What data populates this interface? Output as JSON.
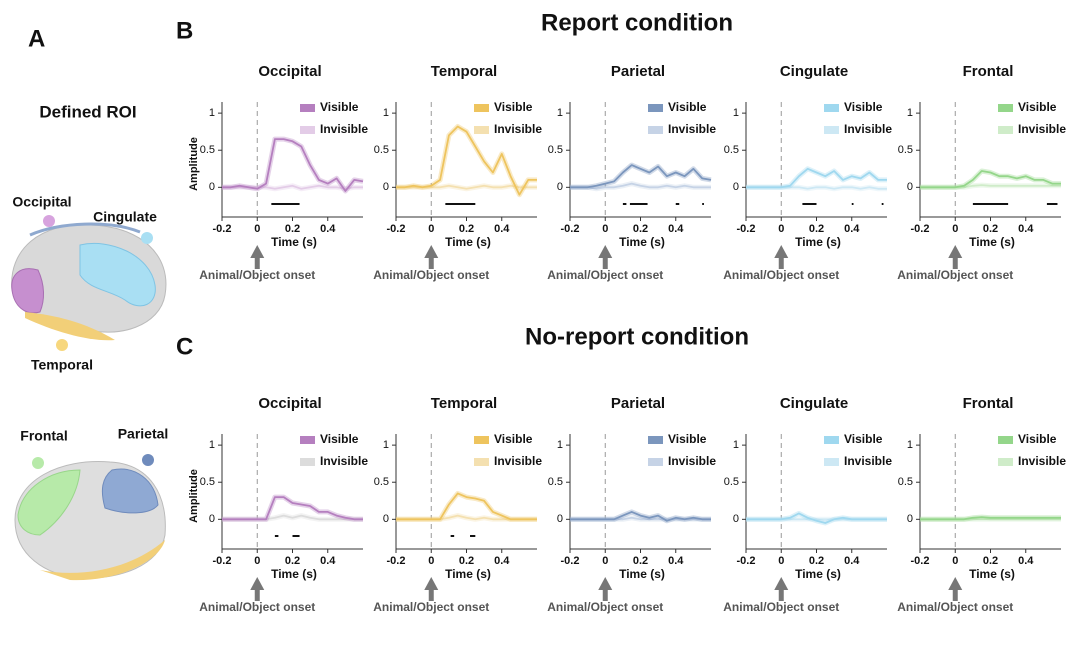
{
  "figure": {
    "panel_labels": [
      "A",
      "B",
      "C"
    ],
    "row_titles": [
      "Report condition",
      "No-report condition"
    ],
    "roi_title": "Defined ROI",
    "roi_labels": [
      "Occipital",
      "Cingulate",
      "Temporal",
      "Frontal",
      "Parietal"
    ]
  },
  "chart_data": [
    {
      "type": "line",
      "title": "Occipital",
      "xlabel": "Time (s)",
      "ylabel": "Amplitude",
      "annotation": "Animal/Object onset",
      "x": [
        -0.2,
        -0.15,
        -0.1,
        -0.05,
        0,
        0.05,
        0.1,
        0.15,
        0.2,
        0.25,
        0.3,
        0.35,
        0.4,
        0.45,
        0.5,
        0.55,
        0.6
      ],
      "series": [
        {
          "name": "Visible",
          "color": "#b57fbf",
          "values": [
            0,
            0,
            0.02,
            0,
            -0.02,
            0.05,
            0.65,
            0.65,
            0.62,
            0.55,
            0.3,
            0.1,
            0.05,
            0.12,
            -0.05,
            0.1,
            0.08
          ]
        },
        {
          "name": "Invisible",
          "color": "#e3cce7",
          "values": [
            0,
            0,
            0,
            0,
            0,
            0,
            -0.02,
            0,
            0.02,
            -0.02,
            0,
            0.02,
            0,
            0,
            -0.02,
            0,
            0
          ]
        }
      ],
      "sig_bars": [
        [
          0.08,
          0.24
        ]
      ],
      "xlim": [
        -0.2,
        0.6
      ],
      "ylim": [
        -0.4,
        1.15
      ],
      "xticks": [
        -0.2,
        0,
        0.2,
        0.4
      ],
      "yticks": [
        0,
        0.5,
        1
      ]
    },
    {
      "type": "line",
      "title": "Temporal",
      "xlabel": "Time (s)",
      "annotation": "Animal/Object onset",
      "x": [
        -0.2,
        -0.15,
        -0.1,
        -0.05,
        0,
        0.05,
        0.1,
        0.15,
        0.2,
        0.25,
        0.3,
        0.35,
        0.4,
        0.45,
        0.5,
        0.55,
        0.6
      ],
      "series": [
        {
          "name": "Visible",
          "color": "#eec45e",
          "values": [
            0,
            0,
            0.02,
            0,
            0.02,
            0.1,
            0.7,
            0.82,
            0.75,
            0.55,
            0.35,
            0.2,
            0.45,
            0.15,
            -0.1,
            0.1,
            0.1
          ]
        },
        {
          "name": "Invisible",
          "color": "#f4e0b0",
          "values": [
            0,
            0,
            0,
            0,
            0,
            0,
            0.02,
            0,
            -0.02,
            0,
            0.02,
            0,
            0,
            0.02,
            0,
            0,
            0
          ]
        }
      ],
      "sig_bars": [
        [
          0.08,
          0.25
        ]
      ],
      "xlim": [
        -0.2,
        0.6
      ],
      "ylim": [
        -0.4,
        1.15
      ],
      "xticks": [
        -0.2,
        0,
        0.2,
        0.4
      ],
      "yticks": [
        0,
        0.5,
        1
      ]
    },
    {
      "type": "line",
      "title": "Parietal",
      "xlabel": "Time (s)",
      "annotation": "Animal/Object onset",
      "x": [
        -0.2,
        -0.15,
        -0.1,
        -0.05,
        0,
        0.05,
        0.1,
        0.15,
        0.2,
        0.25,
        0.3,
        0.35,
        0.4,
        0.45,
        0.5,
        0.55,
        0.6
      ],
      "series": [
        {
          "name": "Visible",
          "color": "#7b96bd",
          "values": [
            0,
            0,
            0,
            0.02,
            0.05,
            0.08,
            0.2,
            0.3,
            0.25,
            0.2,
            0.28,
            0.15,
            0.2,
            0.15,
            0.25,
            0.12,
            0.1
          ]
        },
        {
          "name": "Invisible",
          "color": "#c6d3e6",
          "values": [
            0,
            0,
            0,
            -0.02,
            0,
            0,
            0.02,
            0.05,
            0.02,
            0,
            0,
            0.02,
            0,
            0.02,
            0,
            0,
            0
          ]
        }
      ],
      "sig_bars": [
        [
          0.1,
          0.12
        ],
        [
          0.14,
          0.24
        ],
        [
          0.4,
          0.42
        ],
        [
          0.55,
          0.56
        ]
      ],
      "xlim": [
        -0.2,
        0.6
      ],
      "ylim": [
        -0.4,
        1.15
      ],
      "xticks": [
        -0.2,
        0,
        0.2,
        0.4
      ],
      "yticks": [
        0,
        0.5,
        1
      ]
    },
    {
      "type": "line",
      "title": "Cingulate",
      "xlabel": "Time (s)",
      "annotation": "Animal/Object onset",
      "x": [
        -0.2,
        -0.15,
        -0.1,
        -0.05,
        0,
        0.05,
        0.1,
        0.15,
        0.2,
        0.25,
        0.3,
        0.35,
        0.4,
        0.45,
        0.5,
        0.55,
        0.6
      ],
      "series": [
        {
          "name": "Visible",
          "color": "#9fd8ef",
          "values": [
            0,
            0,
            0,
            0,
            0,
            0.02,
            0.15,
            0.25,
            0.2,
            0.15,
            0.22,
            0.1,
            0.15,
            0.12,
            0.2,
            0.1,
            0.1
          ]
        },
        {
          "name": "Invisible",
          "color": "#cde8f4",
          "values": [
            0,
            0,
            0,
            0,
            0,
            0,
            0,
            -0.02,
            0,
            0,
            -0.02,
            0,
            0,
            -0.02,
            0,
            -0.02,
            -0.02
          ]
        }
      ],
      "sig_bars": [
        [
          0.12,
          0.2
        ],
        [
          0.4,
          0.41
        ],
        [
          0.57,
          0.58
        ]
      ],
      "xlim": [
        -0.2,
        0.6
      ],
      "ylim": [
        -0.4,
        1.15
      ],
      "xticks": [
        -0.2,
        0,
        0.2,
        0.4
      ],
      "yticks": [
        0,
        0.5,
        1
      ]
    },
    {
      "type": "line",
      "title": "Frontal",
      "xlabel": "Time (s)",
      "annotation": "Animal/Object onset",
      "x": [
        -0.2,
        -0.15,
        -0.1,
        -0.05,
        0,
        0.05,
        0.1,
        0.15,
        0.2,
        0.25,
        0.3,
        0.35,
        0.4,
        0.45,
        0.5,
        0.55,
        0.6
      ],
      "series": [
        {
          "name": "Visible",
          "color": "#94d68a",
          "values": [
            0,
            0,
            0,
            0,
            0,
            0.02,
            0.1,
            0.22,
            0.2,
            0.15,
            0.15,
            0.12,
            0.15,
            0.1,
            0.1,
            0.05,
            0.05
          ]
        },
        {
          "name": "Invisible",
          "color": "#cfecc9",
          "values": [
            0,
            0,
            0,
            0,
            0,
            0,
            0.02,
            0.03,
            0.02,
            0.02,
            0.02,
            0.02,
            0.02,
            0.02,
            0.02,
            0.02,
            0.02
          ]
        }
      ],
      "sig_bars": [
        [
          0.1,
          0.3
        ],
        [
          0.52,
          0.58
        ]
      ],
      "xlim": [
        -0.2,
        0.6
      ],
      "ylim": [
        -0.4,
        1.15
      ],
      "xticks": [
        -0.2,
        0,
        0.2,
        0.4
      ],
      "yticks": [
        0,
        0.5,
        1
      ]
    },
    {
      "type": "line",
      "title": "Occipital",
      "xlabel": "Time (s)",
      "ylabel": "Amplitude",
      "annotation": "Animal/Object onset",
      "x": [
        -0.2,
        -0.15,
        -0.1,
        -0.05,
        0,
        0.05,
        0.1,
        0.15,
        0.2,
        0.25,
        0.3,
        0.35,
        0.4,
        0.45,
        0.5,
        0.55,
        0.6
      ],
      "series": [
        {
          "name": "Visible",
          "color": "#b57fbf",
          "values": [
            0,
            0,
            0,
            0,
            0,
            0,
            0.3,
            0.3,
            0.22,
            0.2,
            0.18,
            0.1,
            0.1,
            0.05,
            0.02,
            0,
            0
          ]
        },
        {
          "name": "Invisible",
          "color": "#dcdcdc",
          "values": [
            0,
            0,
            0,
            0,
            0,
            0,
            0.02,
            0.05,
            0.02,
            0.05,
            0.02,
            0,
            0,
            0,
            0,
            0,
            0
          ]
        }
      ],
      "sig_bars": [
        [
          0.1,
          0.12
        ],
        [
          0.2,
          0.24
        ]
      ],
      "xlim": [
        -0.2,
        0.6
      ],
      "ylim": [
        -0.4,
        1.15
      ],
      "xticks": [
        -0.2,
        0,
        0.2,
        0.4
      ],
      "yticks": [
        0,
        0.5,
        1
      ]
    },
    {
      "type": "line",
      "title": "Temporal",
      "xlabel": "Time (s)",
      "annotation": "Animal/Object onset",
      "x": [
        -0.2,
        -0.15,
        -0.1,
        -0.05,
        0,
        0.05,
        0.1,
        0.15,
        0.2,
        0.25,
        0.3,
        0.35,
        0.4,
        0.45,
        0.5,
        0.55,
        0.6
      ],
      "series": [
        {
          "name": "Visible",
          "color": "#eec45e",
          "values": [
            0,
            0,
            0,
            0,
            0,
            0,
            0.2,
            0.35,
            0.3,
            0.28,
            0.25,
            0.1,
            0.05,
            0,
            0,
            0,
            0
          ]
        },
        {
          "name": "Invisible",
          "color": "#f4e0b0",
          "values": [
            0,
            0,
            0,
            0,
            0,
            0,
            0.02,
            0.05,
            0.02,
            0,
            0.02,
            0,
            0,
            0,
            0,
            0,
            0
          ]
        }
      ],
      "sig_bars": [
        [
          0.11,
          0.13
        ],
        [
          0.22,
          0.25
        ]
      ],
      "xlim": [
        -0.2,
        0.6
      ],
      "ylim": [
        -0.4,
        1.15
      ],
      "xticks": [
        -0.2,
        0,
        0.2,
        0.4
      ],
      "yticks": [
        0,
        0.5,
        1
      ]
    },
    {
      "type": "line",
      "title": "Parietal",
      "xlabel": "Time (s)",
      "annotation": "Animal/Object onset",
      "x": [
        -0.2,
        -0.15,
        -0.1,
        -0.05,
        0,
        0.05,
        0.1,
        0.15,
        0.2,
        0.25,
        0.3,
        0.35,
        0.4,
        0.45,
        0.5,
        0.55,
        0.6
      ],
      "series": [
        {
          "name": "Visible",
          "color": "#7b96bd",
          "values": [
            0,
            0,
            0,
            0,
            0,
            0,
            0.05,
            0.1,
            0.05,
            0.02,
            0.05,
            -0.02,
            0.02,
            0,
            0.02,
            0,
            0
          ]
        },
        {
          "name": "Invisible",
          "color": "#c6d3e6",
          "values": [
            0,
            0,
            0,
            0,
            0,
            0,
            0,
            0.02,
            0,
            0,
            0,
            0,
            0,
            0,
            0,
            0,
            0
          ]
        }
      ],
      "sig_bars": [],
      "xlim": [
        -0.2,
        0.6
      ],
      "ylim": [
        -0.4,
        1.15
      ],
      "xticks": [
        -0.2,
        0,
        0.2,
        0.4
      ],
      "yticks": [
        0,
        0.5,
        1
      ]
    },
    {
      "type": "line",
      "title": "Cingulate",
      "xlabel": "Time (s)",
      "annotation": "Animal/Object onset",
      "x": [
        -0.2,
        -0.15,
        -0.1,
        -0.05,
        0,
        0.05,
        0.1,
        0.15,
        0.2,
        0.25,
        0.3,
        0.35,
        0.4,
        0.45,
        0.5,
        0.55,
        0.6
      ],
      "series": [
        {
          "name": "Visible",
          "color": "#9fd8ef",
          "values": [
            0,
            0,
            0,
            0,
            0,
            0.02,
            0.08,
            0.02,
            -0.02,
            -0.05,
            0,
            0.02,
            0,
            0,
            0,
            0,
            0
          ]
        },
        {
          "name": "Invisible",
          "color": "#cde8f4",
          "values": [
            0,
            0,
            0,
            0,
            0,
            0,
            0,
            0,
            0,
            0,
            0,
            0,
            0,
            0,
            0,
            0,
            0
          ]
        }
      ],
      "sig_bars": [],
      "xlim": [
        -0.2,
        0.6
      ],
      "ylim": [
        -0.4,
        1.15
      ],
      "xticks": [
        -0.2,
        0,
        0.2,
        0.4
      ],
      "yticks": [
        0,
        0.5,
        1
      ]
    },
    {
      "type": "line",
      "title": "Frontal",
      "xlabel": "Time (s)",
      "annotation": "Animal/Object onset",
      "x": [
        -0.2,
        -0.15,
        -0.1,
        -0.05,
        0,
        0.05,
        0.1,
        0.15,
        0.2,
        0.25,
        0.3,
        0.35,
        0.4,
        0.45,
        0.5,
        0.55,
        0.6
      ],
      "series": [
        {
          "name": "Visible",
          "color": "#94d68a",
          "values": [
            0,
            0,
            0,
            0,
            0,
            0,
            0.02,
            0.03,
            0.02,
            0.02,
            0.02,
            0.02,
            0.02,
            0.02,
            0.02,
            0.02,
            0.02
          ]
        },
        {
          "name": "Invisible",
          "color": "#cfecc9",
          "values": [
            0,
            0,
            0,
            0,
            0,
            0,
            0,
            0,
            0,
            0,
            0,
            0,
            0,
            0,
            0,
            0,
            0
          ]
        }
      ],
      "sig_bars": [],
      "xlim": [
        -0.2,
        0.6
      ],
      "ylim": [
        -0.4,
        1.15
      ],
      "xticks": [
        -0.2,
        0,
        0.2,
        0.4
      ],
      "yticks": [
        0,
        0.5,
        1
      ]
    }
  ]
}
